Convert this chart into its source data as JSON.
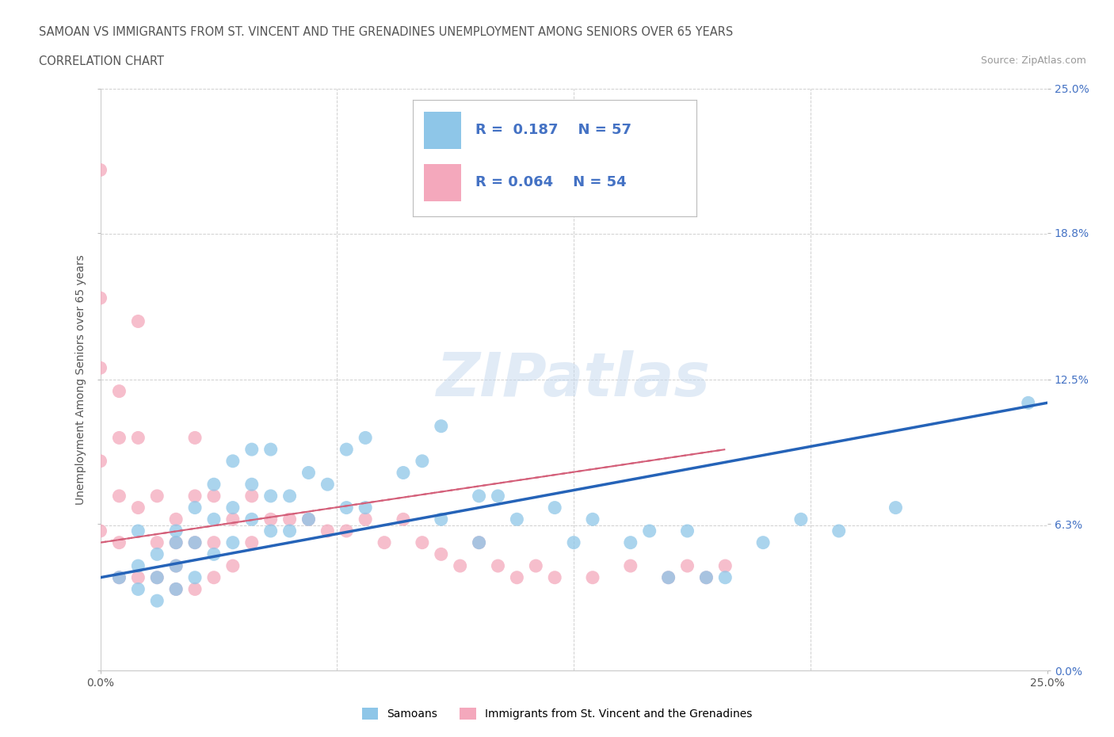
{
  "title_line1": "SAMOAN VS IMMIGRANTS FROM ST. VINCENT AND THE GRENADINES UNEMPLOYMENT AMONG SENIORS OVER 65 YEARS",
  "title_line2": "CORRELATION CHART",
  "source_text": "Source: ZipAtlas.com",
  "ylabel": "Unemployment Among Seniors over 65 years",
  "watermark": "ZIPatlas",
  "xlim": [
    0.0,
    0.25
  ],
  "ylim": [
    0.0,
    0.25
  ],
  "ytick_labels": [
    "0.0%",
    "6.3%",
    "12.5%",
    "18.8%",
    "25.0%"
  ],
  "ytick_vals": [
    0.0,
    0.063,
    0.125,
    0.188,
    0.25
  ],
  "xtick_vals": [
    0.0,
    0.25
  ],
  "xtick_labels": [
    "0.0%",
    "25.0%"
  ],
  "grid_vals": [
    0.0,
    0.0625,
    0.125,
    0.1875,
    0.25
  ],
  "samoans_color": "#8ec6e8",
  "svg_color": "#f4a8bc",
  "samoans_R": 0.187,
  "samoans_N": 57,
  "svg_R": 0.064,
  "svg_N": 54,
  "legend_label_1": "Samoans",
  "legend_label_2": "Immigrants from St. Vincent and the Grenadines",
  "blue_line_color": "#2563b8",
  "pink_line_color": "#d4607a",
  "samoans_x": [
    0.005,
    0.01,
    0.01,
    0.01,
    0.015,
    0.015,
    0.015,
    0.02,
    0.02,
    0.02,
    0.02,
    0.025,
    0.025,
    0.025,
    0.03,
    0.03,
    0.03,
    0.035,
    0.035,
    0.035,
    0.04,
    0.04,
    0.04,
    0.045,
    0.045,
    0.045,
    0.05,
    0.05,
    0.055,
    0.055,
    0.06,
    0.065,
    0.065,
    0.07,
    0.07,
    0.08,
    0.085,
    0.09,
    0.09,
    0.1,
    0.1,
    0.105,
    0.11,
    0.12,
    0.125,
    0.13,
    0.14,
    0.145,
    0.15,
    0.155,
    0.16,
    0.165,
    0.175,
    0.185,
    0.195,
    0.21,
    0.245
  ],
  "samoans_y": [
    0.04,
    0.06,
    0.045,
    0.035,
    0.05,
    0.04,
    0.03,
    0.06,
    0.055,
    0.045,
    0.035,
    0.07,
    0.055,
    0.04,
    0.08,
    0.065,
    0.05,
    0.09,
    0.07,
    0.055,
    0.095,
    0.08,
    0.065,
    0.095,
    0.075,
    0.06,
    0.075,
    0.06,
    0.085,
    0.065,
    0.08,
    0.095,
    0.07,
    0.1,
    0.07,
    0.085,
    0.09,
    0.105,
    0.065,
    0.075,
    0.055,
    0.075,
    0.065,
    0.07,
    0.055,
    0.065,
    0.055,
    0.06,
    0.04,
    0.06,
    0.04,
    0.04,
    0.055,
    0.065,
    0.06,
    0.07,
    0.115
  ],
  "svincent_x": [
    0.0,
    0.0,
    0.0,
    0.0,
    0.0,
    0.005,
    0.005,
    0.005,
    0.005,
    0.005,
    0.01,
    0.01,
    0.01,
    0.01,
    0.015,
    0.015,
    0.015,
    0.02,
    0.02,
    0.02,
    0.02,
    0.025,
    0.025,
    0.025,
    0.025,
    0.03,
    0.03,
    0.03,
    0.035,
    0.035,
    0.04,
    0.04,
    0.045,
    0.05,
    0.055,
    0.06,
    0.065,
    0.07,
    0.075,
    0.08,
    0.085,
    0.09,
    0.095,
    0.1,
    0.105,
    0.11,
    0.115,
    0.12,
    0.13,
    0.14,
    0.15,
    0.155,
    0.16,
    0.165
  ],
  "svincent_y": [
    0.215,
    0.16,
    0.13,
    0.09,
    0.06,
    0.12,
    0.1,
    0.075,
    0.055,
    0.04,
    0.15,
    0.1,
    0.07,
    0.04,
    0.075,
    0.055,
    0.04,
    0.065,
    0.055,
    0.045,
    0.035,
    0.1,
    0.075,
    0.055,
    0.035,
    0.075,
    0.055,
    0.04,
    0.065,
    0.045,
    0.075,
    0.055,
    0.065,
    0.065,
    0.065,
    0.06,
    0.06,
    0.065,
    0.055,
    0.065,
    0.055,
    0.05,
    0.045,
    0.055,
    0.045,
    0.04,
    0.045,
    0.04,
    0.04,
    0.045,
    0.04,
    0.045,
    0.04,
    0.045
  ],
  "blue_trendline_x0": 0.0,
  "blue_trendline_y0": 0.04,
  "blue_trendline_x1": 0.25,
  "blue_trendline_y1": 0.115,
  "pink_trendline_x0": 0.0,
  "pink_trendline_y0": 0.055,
  "pink_trendline_x1": 0.165,
  "pink_trendline_y1": 0.095
}
